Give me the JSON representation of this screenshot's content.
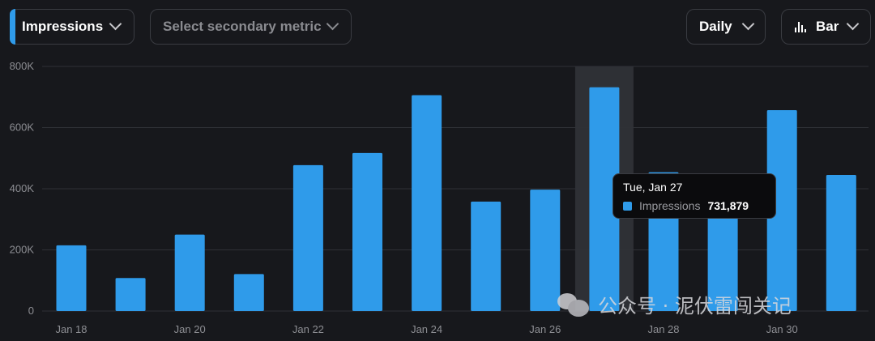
{
  "toolbar": {
    "primary_metric": "Impressions",
    "secondary_metric_placeholder": "Select secondary metric",
    "granularity": "Daily",
    "chart_type_label": "Bar"
  },
  "colors": {
    "background": "#17181c",
    "bar": "#2f9bea",
    "accent": "#2f9bea"
  },
  "icons": {
    "chevron": "chevron-down-icon",
    "bar_chart": "bar-chart-icon",
    "watermark_logo": "wechat-icon"
  },
  "chart_data": {
    "type": "bar",
    "categories": [
      "Jan 18",
      "Jan 19",
      "Jan 20",
      "Jan 21",
      "Jan 22",
      "Jan 23",
      "Jan 24",
      "Jan 25",
      "Jan 26",
      "Jan 27",
      "Jan 28",
      "Jan 29",
      "Jan 30",
      "Jan 31"
    ],
    "x_tick_labels": [
      "Jan 18",
      "",
      "Jan 20",
      "",
      "Jan 22",
      "",
      "Jan 24",
      "",
      "Jan 26",
      "",
      "Jan 28",
      "",
      "Jan 30",
      ""
    ],
    "series": [
      {
        "name": "Impressions",
        "values": [
          215000,
          108000,
          250000,
          121000,
          477000,
          517000,
          706000,
          358000,
          397000,
          731879,
          454000,
          430000,
          657000,
          445000
        ]
      }
    ],
    "ylim": [
      0,
      800000
    ],
    "y_ticks": [
      0,
      200000,
      400000,
      600000,
      800000
    ],
    "y_tick_labels": [
      "0",
      "200K",
      "400K",
      "600K",
      "800K"
    ],
    "grid": true,
    "legend": "none",
    "highlighted_index": 9
  },
  "tooltip": {
    "date": "Tue, Jan 27",
    "series_name": "Impressions",
    "value": "731,879"
  },
  "watermark": {
    "text": "公众号 · 泥伏雷闯关记"
  }
}
